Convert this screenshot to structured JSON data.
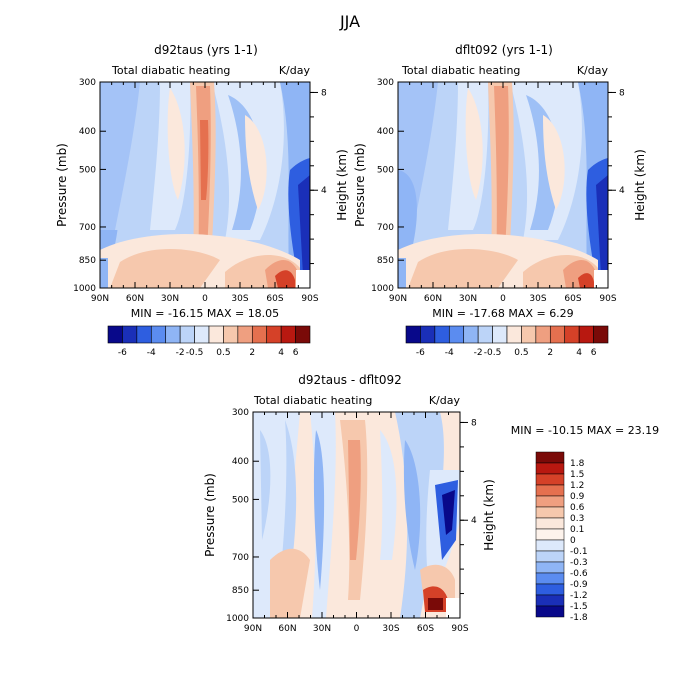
{
  "figure": {
    "title": "JJA"
  },
  "colors": {
    "levels": [
      -6,
      -4,
      -2,
      -0.5,
      0.5,
      2,
      4,
      6
    ],
    "palette": [
      "#08088a",
      "#1a2fb8",
      "#2e5ee0",
      "#5b8cf0",
      "#8fb5f5",
      "#bcd4f8",
      "#dde9fb",
      "#fbe8dc",
      "#f6c8ad",
      "#ef9f80",
      "#e5704f",
      "#d54128",
      "#b81810",
      "#7a0a08"
    ]
  },
  "chart_data": [
    {
      "type": "heatmap",
      "title": "d92taus (yrs 1-1)",
      "subtitle_left": "Total diabatic heating",
      "subtitle_right": "K/day",
      "ylabel": "Pressure (mb)",
      "ylabel_right": "Height (km)",
      "xticks": [
        "90N",
        "60N",
        "30N",
        "0",
        "30S",
        "60S",
        "90S"
      ],
      "yticks": [
        "300",
        "400",
        "500",
        "700",
        "850",
        "1000"
      ],
      "yticks_right": [
        "8",
        "4"
      ],
      "min_max": "MIN = -16.15   MAX =   18.05",
      "colorbar_labels": [
        "-6",
        "-4",
        "-2",
        "-0.5",
        "0.5",
        "2",
        "4",
        "6"
      ]
    },
    {
      "type": "heatmap",
      "title": "dflt092 (yrs 1-1)",
      "subtitle_left": "Total diabatic heating",
      "subtitle_right": "K/day",
      "ylabel": "Pressure (mb)",
      "ylabel_right": "Height (km)",
      "xticks": [
        "90N",
        "60N",
        "30N",
        "0",
        "30S",
        "60S",
        "90S"
      ],
      "yticks": [
        "300",
        "400",
        "500",
        "700",
        "850",
        "1000"
      ],
      "yticks_right": [
        "8",
        "4"
      ],
      "min_max": "MIN = -17.68   MAX =    6.29",
      "colorbar_labels": [
        "-6",
        "-4",
        "-2",
        "-0.5",
        "0.5",
        "2",
        "4",
        "6"
      ]
    },
    {
      "type": "heatmap",
      "title": "d92taus - dflt092",
      "subtitle_left": "Total diabatic heating",
      "subtitle_right": "K/day",
      "ylabel": "Pressure (mb)",
      "ylabel_right": "Height (km)",
      "xticks": [
        "90N",
        "60N",
        "30N",
        "0",
        "30S",
        "60S",
        "90S"
      ],
      "yticks": [
        "300",
        "400",
        "500",
        "700",
        "850",
        "1000"
      ],
      "yticks_right": [
        "8",
        "4"
      ],
      "min_max": "MIN = -10.15   MAX =  23.19",
      "colorbar_labels": [
        "1.8",
        "1.5",
        "1.2",
        "0.9",
        "0.6",
        "0.3",
        "0.1",
        "0",
        "-0.1",
        "-0.3",
        "-0.6",
        "-0.9",
        "-1.2",
        "-1.5",
        "-1.8"
      ],
      "colorbar_colors": [
        "#7a0a08",
        "#b81810",
        "#d54128",
        "#e5704f",
        "#ef9f80",
        "#f6c8ad",
        "#fbe8dc",
        "#fdf3ec",
        "#dde9fb",
        "#bcd4f8",
        "#8fb5f5",
        "#5b8cf0",
        "#2e5ee0",
        "#1a2fb8",
        "#08088a"
      ]
    }
  ]
}
